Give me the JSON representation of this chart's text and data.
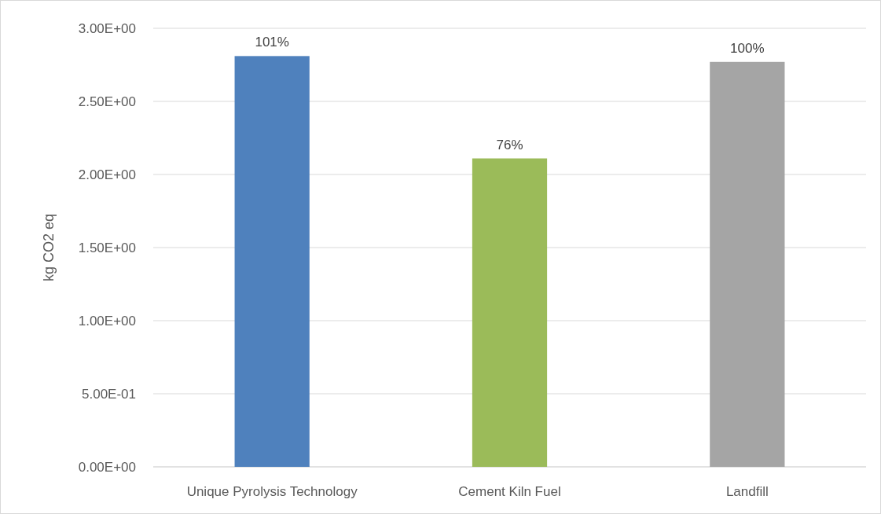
{
  "chart_data": {
    "type": "bar",
    "ylabel": "kg CO2 eq",
    "categories": [
      "Unique Pyrolysis Technology",
      "Cement Kiln Fuel",
      "Landfill"
    ],
    "values": [
      2.81,
      2.11,
      2.77
    ],
    "colors": [
      "#4f81bd",
      "#9bbb59",
      "#a5a5a5"
    ],
    "annotations": [
      {
        "text": "101%",
        "x": "Unique Pyrolysis Technology",
        "y": 2.81
      },
      {
        "text": "76%",
        "x": "Cement Kiln Fuel",
        "y": 2.11
      },
      {
        "text": "100%",
        "x": "Landfill",
        "y": 2.77
      }
    ],
    "ylim": [
      0,
      3
    ],
    "yticks": [
      {
        "value": 0,
        "label": "0.00E+00"
      },
      {
        "value": 0.5,
        "label": "5.00E-01"
      },
      {
        "value": 1,
        "label": "1.00E+00"
      },
      {
        "value": 1.5,
        "label": "1.50E+00"
      },
      {
        "value": 2,
        "label": "2.00E+00"
      },
      {
        "value": 2.5,
        "label": "2.50E+00"
      },
      {
        "value": 3,
        "label": "3.00E+00"
      }
    ],
    "grid": "y"
  }
}
